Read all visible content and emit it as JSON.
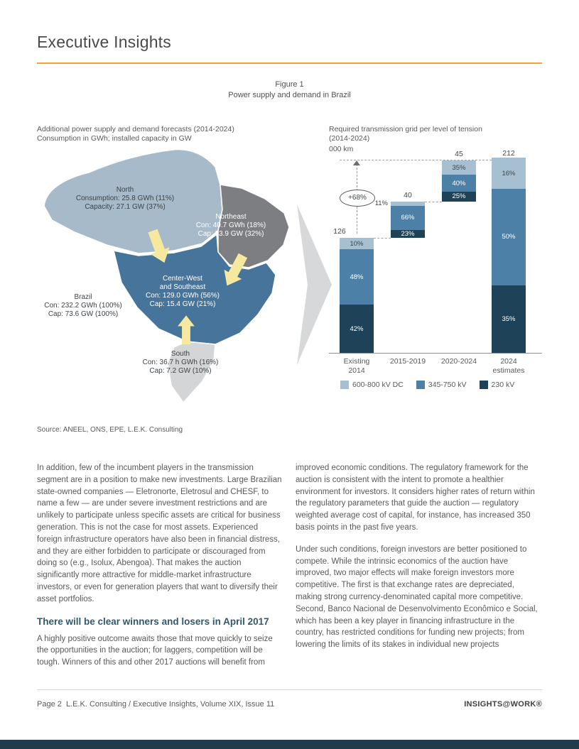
{
  "header": {
    "title": "Executive Insights"
  },
  "figure": {
    "label": "Figure 1",
    "title": "Power supply and demand in Brazil",
    "source": "Source: ANEEL, ONS, EPE, L.E.K. Consulting"
  },
  "map": {
    "caption": [
      "Additional power supply and demand forecasts (2014-2024)",
      "Consumption in GWh; installed capacity in GW"
    ],
    "labels": {
      "north": [
        "North",
        "Consumption: 25.8 GWh (11%)",
        "Capacity: 27.1 GW (37%)"
      ],
      "northeast": [
        "Northeast",
        "Con: 40.7 GWh (18%)",
        "Cap: 23.9 GW (32%)"
      ],
      "center": [
        "Center-West",
        "and Southeast",
        "Con: 129.0 GWh (56%)",
        "Cap: 15.4 GW (21%)"
      ],
      "brazil": [
        "Brazil",
        "Con: 232.2 GWh (100%)",
        "Cap: 73.6 GW (100%)"
      ],
      "south": [
        "South",
        "Con: 36.7 h GWh (16%)",
        "Cap: 7.2 GW (10%)"
      ]
    }
  },
  "chart_data": {
    "type": "bar",
    "variant": "stacked-waterfall",
    "title": "Required transmission grid per level of tension (2014-2024)",
    "unit": "000 km",
    "categories": [
      "Existing\n2014",
      "2015-2019",
      "2020-2024",
      "2024\nestimates"
    ],
    "totals": [
      126,
      40,
      45,
      212
    ],
    "series": [
      {
        "name": "600-800 kV DC",
        "color": "#a6c0d2",
        "text_color": "#3f4448",
        "values_pct": [
          10,
          11,
          35,
          16
        ]
      },
      {
        "name": "345-750 kV",
        "color": "#4d80a6",
        "text_color": "#ffffff",
        "values_pct": [
          48,
          66,
          40,
          50
        ]
      },
      {
        "name": "230 kV",
        "color": "#1e4257",
        "text_color": "#ffffff",
        "values_pct": [
          42,
          23,
          25,
          35
        ]
      }
    ],
    "annotation": "+68%",
    "ylim": [
      0,
      230
    ],
    "legend_position": "bottom",
    "grid": false
  },
  "body": {
    "col1_p1": "In addition, few of the incumbent players in the transmission segment are in a position to make new investments. Large Brazilian state-owned companies — Eletronorte, Eletrosul and CHESF, to name a few — are under severe investment restrictions and are unlikely to participate unless specific assets are critical for business generation. This is not the case for most assets. Experienced foreign infrastructure operators have also been in financial distress, and they are either forbidden to participate or discouraged from doing so (e.g., Isolux, Abengoa). That makes the auction significantly more attractive for middle-market infrastructure investors, or even for generation players that want to diversify their asset portfolios.",
    "heading": "There will be clear winners and losers in April 2017",
    "col1_p2": "A highly positive outcome awaits those that move quickly to seize the opportunities in the auction; for laggers, competition will be tough. Winners of this and other 2017 auctions will benefit from",
    "col2_p1": "improved economic conditions. The regulatory framework for the auction is consistent with the intent to promote a healthier environment for investors. It considers higher rates of return within the regulatory parameters that guide the auction — regulatory weighted average cost of capital, for instance, has increased 350 basis points in the past five years.",
    "col2_p2": "Under such conditions, foreign investors are better positioned to compete. While the intrinsic economics of the auction have improved, two major effects will make foreign investors more competitive. The first is that exchange rates are depreciated, making strong currency-denominated capital more competitive. Second, Banco Nacional de Desenvolvimento Econômico e Social, which has been a key player in financing infrastructure in the country, has restricted conditions for funding new projects; from lowering the limits of its stakes in individual new projects"
  },
  "footer": {
    "left": "Page 2  L.E.K. Consulting / Executive Insights, Volume XIX, Issue 11",
    "right": "INSIGHTS@WORK®"
  },
  "colors": {
    "accent_orange": "#efa143",
    "footer_bar": "#203b4e",
    "heading_teal": "#2f5a6d",
    "map_north": "#a7bac9",
    "map_northeast": "#7c7e81",
    "map_center_southeast": "#47749b",
    "map_south": "#d3d5d6",
    "arrow_yellow": "#f6e89e",
    "big_arrow_gray": "#d7d8d9"
  }
}
